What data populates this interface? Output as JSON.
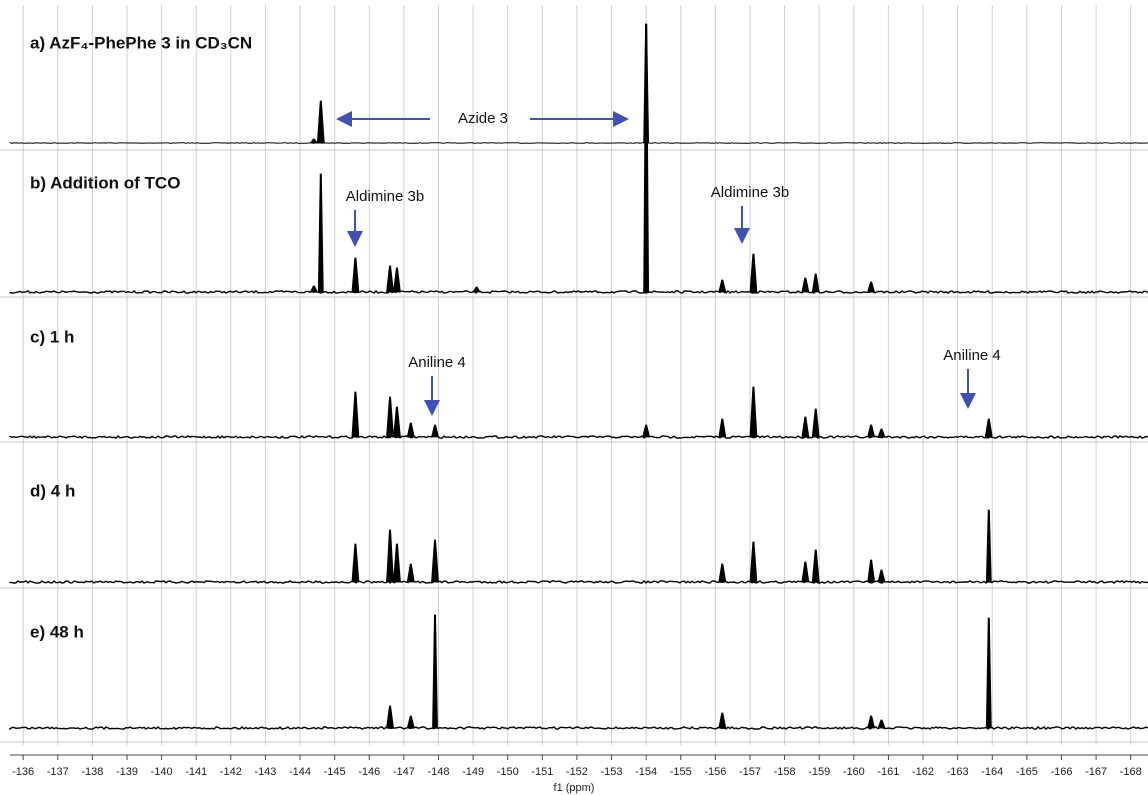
{
  "chart_data": {
    "type": "spectrum",
    "x_label": "f1 (ppm)",
    "xlim": [
      -135.62,
      -168.5
    ],
    "xticks": [
      -136,
      -137,
      -138,
      -139,
      -140,
      -141,
      -142,
      -143,
      -144,
      -145,
      -146,
      -147,
      -148,
      -149,
      -150,
      -151,
      -152,
      -153,
      -154,
      -155,
      -156,
      -157,
      -158,
      -159,
      -160,
      -161,
      -162,
      -163,
      -164,
      -165,
      -166,
      -167,
      -168
    ],
    "grid": true,
    "color": "#000000",
    "annotation_color": "#3f51b5",
    "annotations": [
      "Azide 3",
      "Aldimine 3b",
      "Aldimine 3b",
      "Aniline 4",
      "Aniline 4"
    ],
    "spectra": [
      {
        "name": "a) AzF₄-PhePhe 3 in CD₃CN",
        "ppm": [
          -144.4,
          -144.6,
          -154.0
        ],
        "intensities": [
          4,
          42,
          118
        ]
      },
      {
        "name": "b) Addition of TCO",
        "ppm": [
          -144.4,
          -144.6,
          -145.6,
          -146.6,
          -146.8,
          -149.1,
          -154.0,
          -156.2,
          -157.1,
          -158.6,
          -158.9,
          -160.5
        ],
        "intensities": [
          6,
          118,
          34,
          26,
          24,
          5,
          268,
          12,
          38,
          14,
          18,
          10
        ]
      },
      {
        "name": "c) 1 h",
        "ppm": [
          -145.6,
          -146.6,
          -146.8,
          -147.2,
          -147.9,
          -154.0,
          -156.2,
          -157.1,
          -158.6,
          -158.9,
          -160.5,
          -160.8,
          -163.9
        ],
        "intensities": [
          45,
          40,
          30,
          14,
          12,
          12,
          18,
          50,
          20,
          28,
          12,
          8,
          18
        ]
      },
      {
        "name": "d) 4 h",
        "ppm": [
          -145.6,
          -146.6,
          -146.8,
          -147.2,
          -147.9,
          -156.2,
          -157.1,
          -158.6,
          -158.9,
          -160.5,
          -160.8,
          -163.9
        ],
        "intensities": [
          38,
          52,
          38,
          18,
          42,
          18,
          40,
          20,
          32,
          22,
          12,
          72
        ]
      },
      {
        "name": "e) 48 h",
        "ppm": [
          -146.6,
          -147.2,
          -147.9,
          -156.2,
          -160.5,
          -160.8,
          -163.9
        ],
        "intensities": [
          22,
          12,
          113,
          15,
          12,
          8,
          110
        ]
      }
    ]
  }
}
